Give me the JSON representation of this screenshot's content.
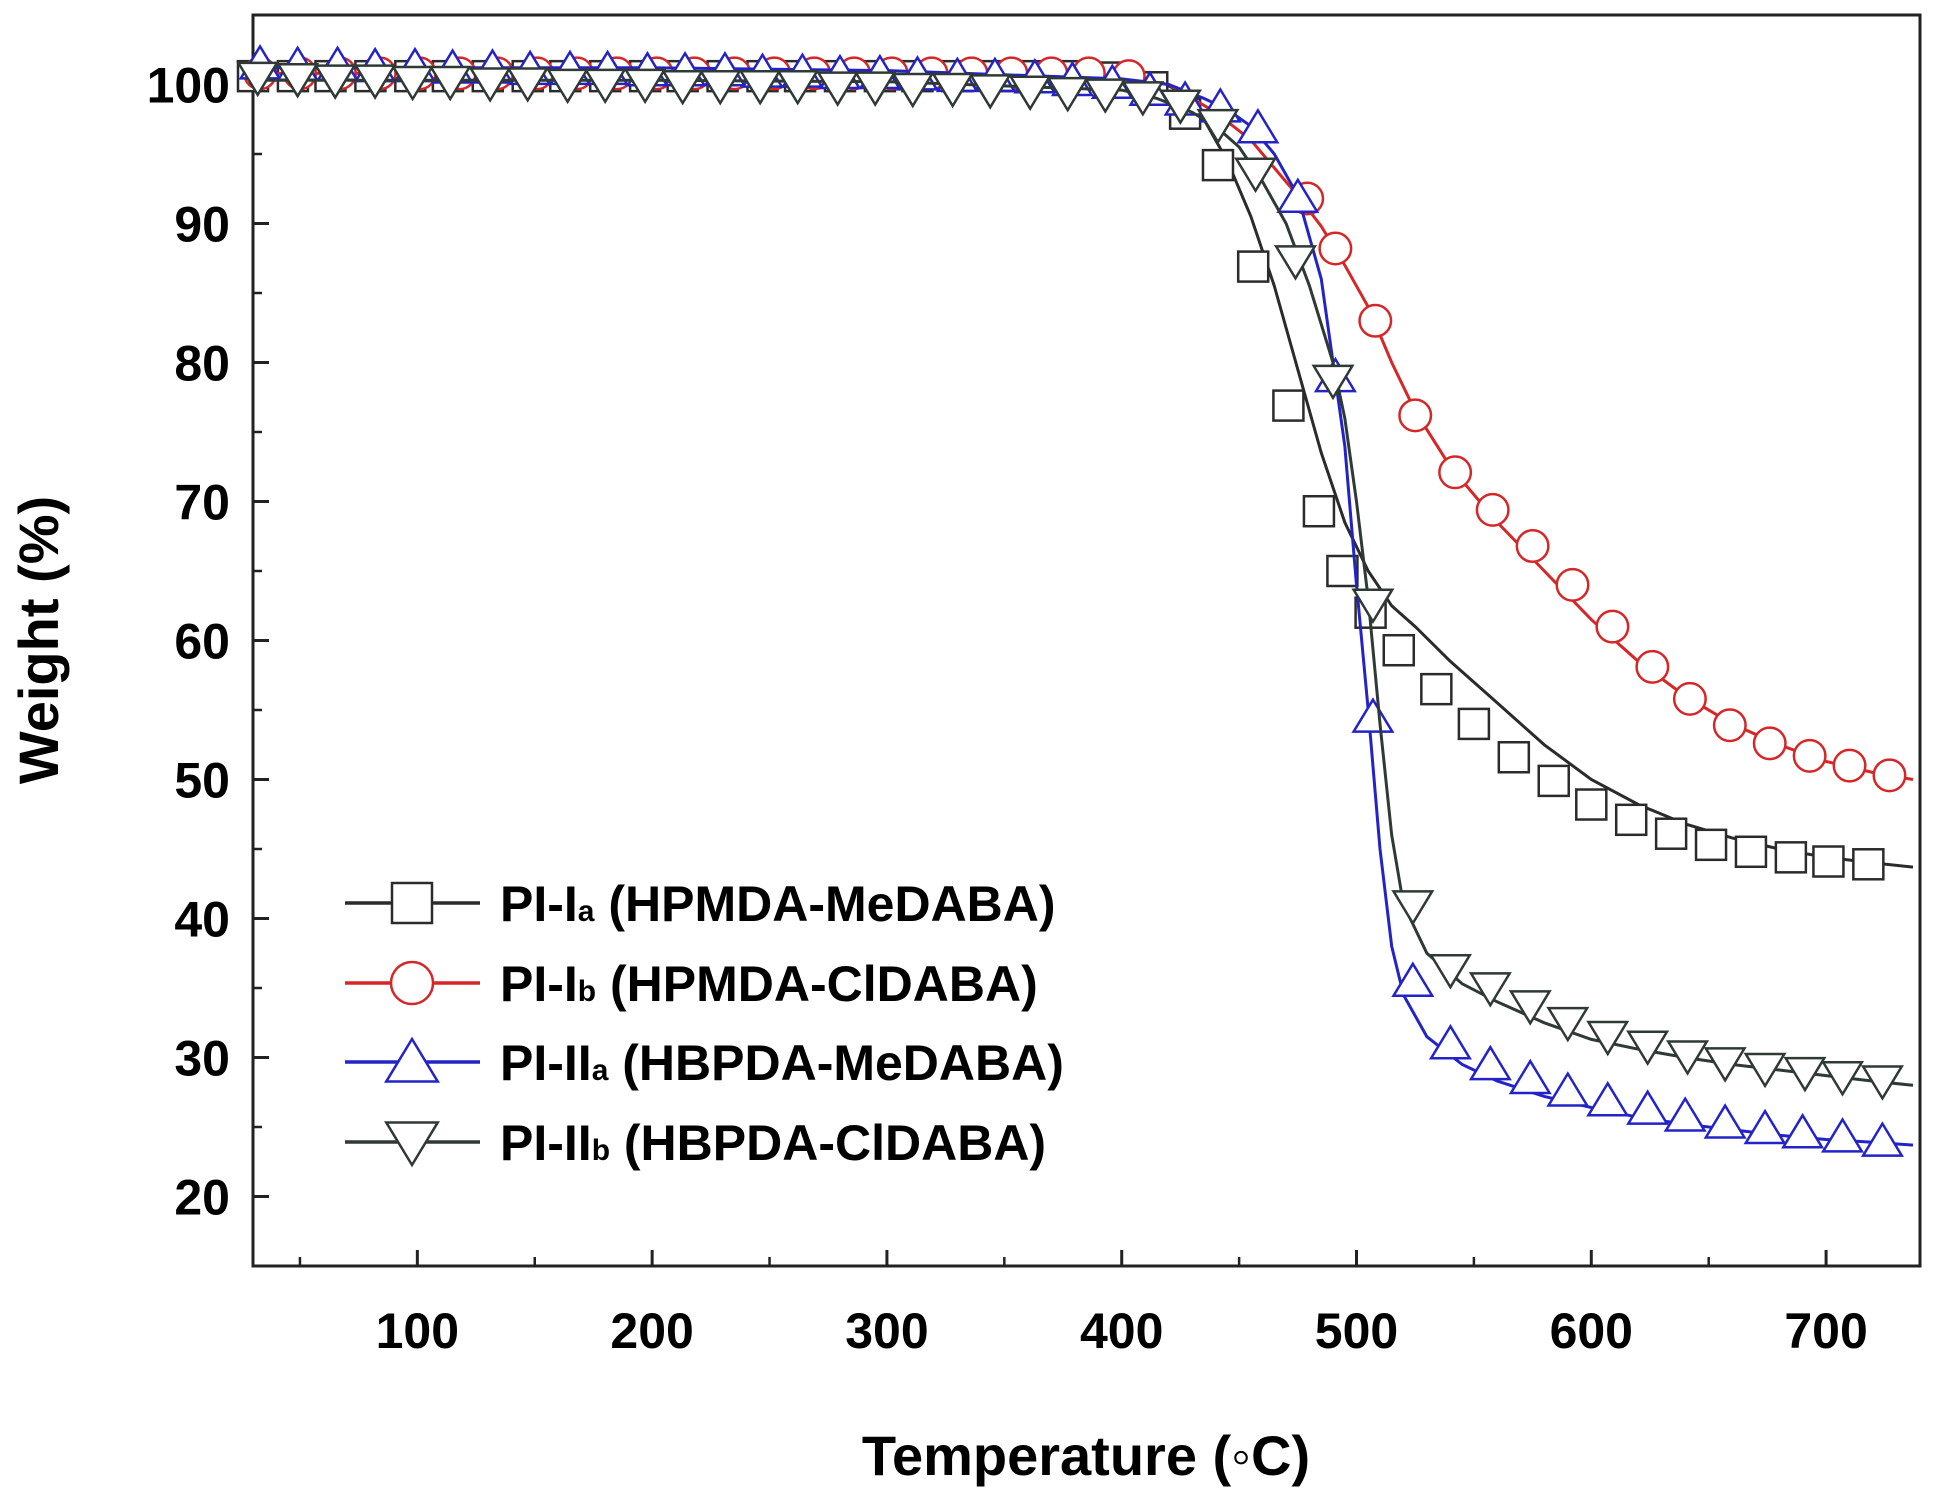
{
  "chart_data": {
    "type": "line",
    "title": "",
    "xlabel": "Temperature (◦C)",
    "ylabel": "Weight (%)",
    "xlim": [
      30,
      740
    ],
    "ylim": [
      15,
      105
    ],
    "xticks": [
      100,
      200,
      300,
      400,
      500,
      600,
      700
    ],
    "yticks": [
      20,
      30,
      40,
      50,
      60,
      70,
      80,
      90,
      100
    ],
    "xtick_labels": [
      "100",
      "200",
      "300",
      "400",
      "500",
      "600",
      "700"
    ],
    "ytick_labels": [
      "20",
      "30",
      "40",
      "50",
      "60",
      "70",
      "80",
      "90",
      "100"
    ],
    "grid": false,
    "legend_position": "lower-left",
    "series": [
      {
        "name": "PI-Ia (HPMDA-MeDABA)",
        "label_main": "PI-I",
        "label_sub": "a",
        "label_rest": " (HPMDA-MeDABA)",
        "color": "#2b2b2b",
        "marker": "square",
        "x": [
          30,
          100,
          200,
          300,
          400,
          415,
          425,
          435,
          445,
          455,
          465,
          475,
          485,
          495,
          505,
          515,
          525,
          540,
          560,
          580,
          600,
          620,
          640,
          660,
          680,
          700,
          720,
          737
        ],
        "y": [
          100.6,
          100.6,
          100.6,
          100.6,
          100.5,
          100.3,
          99.5,
          97.5,
          94.5,
          90.5,
          85.5,
          79.5,
          73.5,
          68.5,
          65.0,
          62.5,
          61.0,
          58.5,
          55.5,
          52.5,
          50.0,
          48.2,
          46.8,
          45.8,
          45.0,
          44.4,
          44.0,
          43.7
        ],
        "marker_x": [
          30,
          47,
          63,
          80,
          97,
          113,
          130,
          147,
          163,
          180,
          197,
          213,
          230,
          247,
          263,
          280,
          297,
          313,
          330,
          347,
          363,
          380,
          397,
          413,
          427,
          441,
          456,
          471,
          484,
          494,
          506,
          518,
          534,
          550,
          567,
          584,
          600,
          617,
          634,
          651,
          668,
          685,
          701,
          718
        ],
        "marker_y": [
          100.6,
          100.6,
          100.6,
          100.6,
          100.6,
          100.6,
          100.6,
          100.6,
          100.6,
          100.6,
          100.6,
          100.6,
          100.6,
          100.6,
          100.6,
          100.6,
          100.6,
          100.6,
          100.6,
          100.6,
          100.6,
          100.6,
          100.5,
          99.8,
          97.9,
          94.2,
          86.9,
          76.9,
          69.3,
          65.0,
          62.0,
          59.3,
          56.5,
          54.0,
          51.6,
          49.9,
          48.2,
          47.1,
          46.1,
          45.3,
          44.8,
          44.4,
          44.1,
          43.9
        ]
      },
      {
        "name": "PI-Ib (HPMDA-ClDABA)",
        "label_main": "PI-I",
        "label_sub": "b",
        "label_rest": " (HPMDA-ClDABA)",
        "color": "#d62728",
        "marker": "circle",
        "x": [
          30,
          100,
          200,
          300,
          400,
          420,
          440,
          455,
          465,
          475,
          485,
          495,
          505,
          515,
          525,
          540,
          560,
          580,
          600,
          620,
          640,
          660,
          680,
          700,
          720,
          737
        ],
        "y": [
          100.8,
          100.8,
          100.8,
          100.8,
          100.6,
          100.0,
          98.0,
          96.0,
          94.0,
          92.0,
          89.8,
          87.0,
          84.0,
          80.0,
          76.5,
          72.5,
          68.5,
          65.0,
          61.5,
          58.5,
          56.0,
          54.0,
          52.5,
          51.3,
          50.5,
          50.0
        ],
        "marker_x": [
          33,
          50,
          67,
          84,
          101,
          118,
          134,
          151,
          168,
          185,
          202,
          218,
          235,
          252,
          269,
          286,
          302,
          319,
          336,
          353,
          370,
          386,
          403,
          479,
          491,
          508,
          525,
          542,
          558,
          575,
          592,
          609,
          626,
          642,
          659,
          676,
          693,
          710,
          727
        ],
        "marker_y": [
          100.8,
          100.8,
          100.8,
          100.8,
          100.8,
          100.8,
          100.8,
          100.8,
          100.8,
          100.8,
          100.8,
          100.8,
          100.8,
          100.8,
          100.8,
          100.8,
          100.8,
          100.8,
          100.8,
          100.8,
          100.8,
          100.8,
          100.6,
          91.8,
          88.2,
          83.0,
          76.2,
          72.1,
          69.4,
          66.8,
          64.0,
          61.0,
          58.1,
          55.8,
          53.9,
          52.6,
          51.7,
          51.0,
          50.3
        ]
      },
      {
        "name": "PI-IIa (HBPDA-MeDABA)",
        "label_main": "PI-II",
        "label_sub": "a",
        "label_rest": " (HBPDA-MeDABA)",
        "color": "#2323c8",
        "marker": "triangle-up",
        "x": [
          30,
          100,
          200,
          300,
          400,
          420,
          435,
          445,
          455,
          465,
          475,
          485,
          495,
          500,
          505,
          510,
          515,
          520,
          530,
          545,
          560,
          580,
          600,
          620,
          640,
          660,
          680,
          700,
          720,
          737
        ],
        "y": [
          101.2,
          101.2,
          101.2,
          101.0,
          100.4,
          100.0,
          99.0,
          98.2,
          97.0,
          95.0,
          92.0,
          86.0,
          74.0,
          64.0,
          55.0,
          45.0,
          38.0,
          34.5,
          31.5,
          29.5,
          28.3,
          27.2,
          26.4,
          25.7,
          25.2,
          24.8,
          24.4,
          24.1,
          23.9,
          23.7
        ],
        "marker_x": [
          33,
          49,
          66,
          82,
          99,
          115,
          132,
          148,
          165,
          181,
          198,
          214,
          231,
          247,
          264,
          280,
          297,
          313,
          330,
          346,
          363,
          379,
          396,
          412,
          427,
          442,
          458,
          475,
          491,
          507,
          524,
          540,
          557,
          574,
          590,
          607,
          624,
          640,
          657,
          674,
          690,
          707,
          724
        ],
        "marker_y": [
          101.5,
          101.4,
          101.4,
          101.3,
          101.3,
          101.2,
          101.2,
          101.1,
          101.1,
          101.1,
          101.0,
          101.0,
          101.0,
          100.9,
          100.9,
          100.8,
          100.8,
          100.7,
          100.6,
          100.6,
          100.5,
          100.3,
          100.1,
          99.6,
          98.9,
          98.4,
          96.9,
          91.9,
          79.0,
          54.5,
          35.5,
          31.0,
          29.5,
          28.5,
          27.6,
          26.9,
          26.3,
          25.8,
          25.3,
          24.9,
          24.6,
          24.3,
          24.0
        ]
      },
      {
        "name": "PI-IIb (HBPDA-ClDABA)",
        "label_main": "PI-II",
        "label_sub": "b",
        "label_rest": " (HBPDA-ClDABA)",
        "color": "#2f3a35",
        "marker": "triangle-down",
        "x": [
          30,
          100,
          200,
          300,
          400,
          415,
          430,
          440,
          450,
          460,
          470,
          480,
          490,
          495,
          500,
          505,
          510,
          515,
          520,
          530,
          545,
          560,
          580,
          600,
          620,
          640,
          660,
          680,
          700,
          720,
          737
        ],
        "y": [
          100.3,
          100.3,
          100.3,
          100.2,
          99.6,
          99.0,
          98.0,
          97.0,
          95.5,
          93.0,
          90.0,
          85.5,
          80.0,
          76.0,
          70.0,
          63.0,
          54.0,
          46.0,
          41.0,
          37.5,
          35.3,
          34.0,
          32.5,
          31.3,
          30.6,
          30.0,
          29.5,
          29.1,
          28.7,
          28.3,
          28.0
        ],
        "marker_x": [
          32,
          49,
          65,
          82,
          98,
          114,
          131,
          147,
          164,
          180,
          197,
          213,
          229,
          246,
          262,
          279,
          295,
          311,
          328,
          344,
          361,
          377,
          393,
          409,
          425,
          441,
          457,
          474,
          490,
          507,
          524,
          540,
          557,
          574,
          590,
          607,
          624,
          641,
          657,
          674,
          691,
          707,
          724
        ],
        "marker_y": [
          100.5,
          100.4,
          100.3,
          100.3,
          100.2,
          100.2,
          100.1,
          100.1,
          100.0,
          100.0,
          100.0,
          99.9,
          99.9,
          99.9,
          99.9,
          99.8,
          99.8,
          99.7,
          99.7,
          99.6,
          99.5,
          99.4,
          99.3,
          99.1,
          98.5,
          97.1,
          93.6,
          87.3,
          78.7,
          62.6,
          40.9,
          36.3,
          35.0,
          33.7,
          32.5,
          31.5,
          30.8,
          30.1,
          29.6,
          29.2,
          28.9,
          28.6,
          28.3
        ]
      }
    ]
  }
}
